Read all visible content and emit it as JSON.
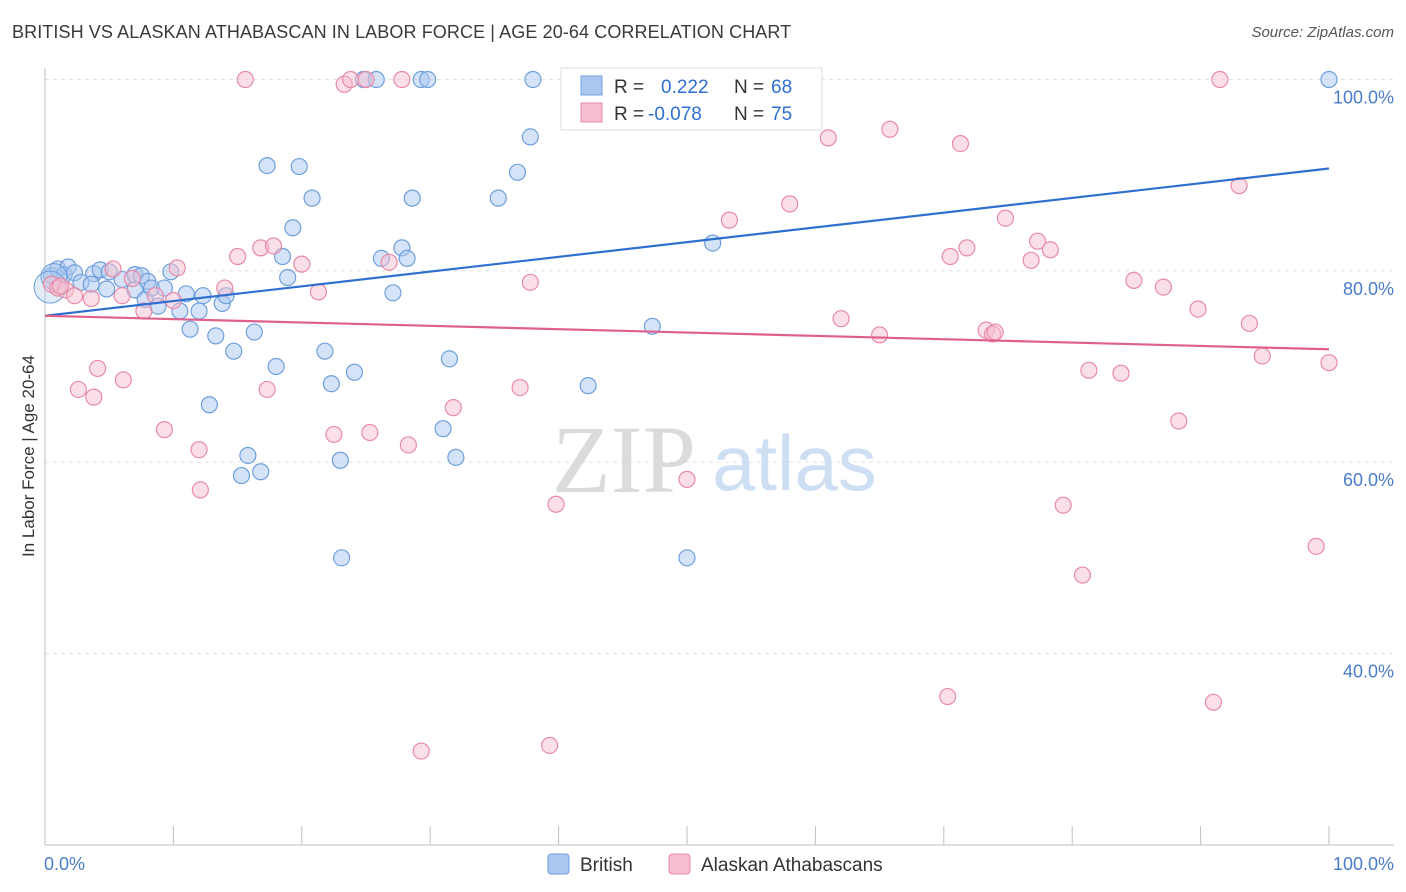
{
  "chart_data": {
    "type": "scatter",
    "title": "BRITISH VS ALASKAN ATHABASCAN IN LABOR FORCE | AGE 20-64 CORRELATION CHART",
    "source": "Source: ZipAtlas.com",
    "ylabel": "In Labor Force | Age 20-64",
    "xlabel": "",
    "xlim": [
      0,
      100
    ],
    "ylim": [
      20,
      104
    ],
    "x_tick_labels": {
      "min": "0.0%",
      "max": "100.0%"
    },
    "y_ticks": [
      {
        "value": 100,
        "label": "100.0%"
      },
      {
        "value": 80,
        "label": "80.0%"
      },
      {
        "value": 60,
        "label": "60.0%"
      },
      {
        "value": 40,
        "label": "40.0%"
      }
    ],
    "watermark": {
      "zip": "ZIP",
      "atlas": "atlas"
    },
    "legend": {
      "r_label": "R =",
      "n_label": "N =",
      "entries": [
        {
          "r": "0.222",
          "n": "68"
        },
        {
          "r": "-0.078",
          "n": "75"
        }
      ]
    },
    "colors": {
      "british_fill": "#aac8ef",
      "british_stroke": "#6f9fdc",
      "british_line": "#2f6fd0",
      "alaskan_fill": "#f6bfd0",
      "alaskan_stroke": "#e88aa8",
      "alaskan_line": "#e0608c"
    },
    "series": [
      {
        "name": "British",
        "trend": {
          "x": [
            0,
            100
          ],
          "y": [
            75.3,
            90.7
          ]
        },
        "points": [
          [
            0.5,
            79.5
          ],
          [
            1.0,
            80.2
          ],
          [
            1.5,
            79.6
          ],
          [
            1.8,
            80.4
          ],
          [
            2.3,
            79.8
          ],
          [
            2.8,
            78.8
          ],
          [
            3.8,
            79.7
          ],
          [
            3.6,
            78.6
          ],
          [
            4.3,
            80.1
          ],
          [
            5.0,
            79.9
          ],
          [
            4.8,
            78.1
          ],
          [
            6.0,
            79.1
          ],
          [
            7.0,
            79.6
          ],
          [
            7.5,
            79.5
          ],
          [
            7.0,
            78.0
          ],
          [
            8.0,
            78.9
          ],
          [
            7.8,
            77.0
          ],
          [
            8.3,
            78.2
          ],
          [
            8.8,
            76.3
          ],
          [
            9.3,
            78.2
          ],
          [
            9.8,
            79.9
          ],
          [
            10.5,
            75.8
          ],
          [
            11.0,
            77.6
          ],
          [
            11.3,
            73.9
          ],
          [
            12.0,
            75.8
          ],
          [
            12.3,
            77.4
          ],
          [
            12.8,
            66.0
          ],
          [
            13.3,
            73.2
          ],
          [
            13.8,
            76.6
          ],
          [
            14.1,
            77.4
          ],
          [
            14.7,
            71.6
          ],
          [
            15.3,
            58.6
          ],
          [
            15.8,
            60.7
          ],
          [
            16.3,
            73.6
          ],
          [
            16.8,
            59.0
          ],
          [
            17.3,
            91.0
          ],
          [
            18.0,
            70.0
          ],
          [
            18.5,
            81.5
          ],
          [
            18.9,
            79.3
          ],
          [
            19.3,
            84.5
          ],
          [
            19.8,
            90.9
          ],
          [
            20.8,
            87.6
          ],
          [
            21.8,
            71.6
          ],
          [
            22.3,
            68.2
          ],
          [
            23.0,
            60.2
          ],
          [
            23.1,
            50.0
          ],
          [
            24.1,
            69.4
          ],
          [
            24.8,
            100
          ],
          [
            25.8,
            100
          ],
          [
            26.2,
            81.3
          ],
          [
            27.1,
            77.7
          ],
          [
            27.8,
            82.4
          ],
          [
            28.2,
            81.3
          ],
          [
            28.6,
            87.6
          ],
          [
            29.3,
            100
          ],
          [
            29.8,
            100
          ],
          [
            31.0,
            63.5
          ],
          [
            31.5,
            70.8
          ],
          [
            32.0,
            60.5
          ],
          [
            35.3,
            87.6
          ],
          [
            36.8,
            90.3
          ],
          [
            37.8,
            94.0
          ],
          [
            38.0,
            100
          ],
          [
            42.3,
            68.0
          ],
          [
            47.3,
            74.2
          ],
          [
            50.0,
            50.0
          ],
          [
            52.0,
            82.9
          ],
          [
            100.0,
            100
          ]
        ]
      },
      {
        "name": "Alaskan Athabascans",
        "trend": {
          "x": [
            0,
            100
          ],
          "y": [
            75.3,
            71.8
          ]
        },
        "points": [
          [
            0.5,
            78.6
          ],
          [
            1.0,
            78.2
          ],
          [
            1.6,
            78.0
          ],
          [
            2.3,
            77.4
          ],
          [
            2.6,
            67.6
          ],
          [
            3.6,
            77.1
          ],
          [
            3.8,
            66.8
          ],
          [
            4.1,
            69.8
          ],
          [
            5.3,
            80.2
          ],
          [
            6.0,
            77.4
          ],
          [
            6.1,
            68.6
          ],
          [
            6.8,
            79.2
          ],
          [
            7.7,
            75.8
          ],
          [
            8.6,
            77.4
          ],
          [
            9.3,
            63.4
          ],
          [
            10.3,
            80.3
          ],
          [
            10.0,
            76.9
          ],
          [
            12.0,
            61.3
          ],
          [
            12.1,
            57.1
          ],
          [
            14.0,
            78.2
          ],
          [
            15.0,
            81.5
          ],
          [
            15.6,
            100
          ],
          [
            16.8,
            82.4
          ],
          [
            17.3,
            67.6
          ],
          [
            17.8,
            82.6
          ],
          [
            20.0,
            80.7
          ],
          [
            21.3,
            77.8
          ],
          [
            22.5,
            62.9
          ],
          [
            23.3,
            99.5
          ],
          [
            23.8,
            100
          ],
          [
            25.0,
            100
          ],
          [
            25.3,
            63.1
          ],
          [
            26.8,
            80.9
          ],
          [
            27.8,
            100
          ],
          [
            28.3,
            61.8
          ],
          [
            29.3,
            29.8
          ],
          [
            31.8,
            65.7
          ],
          [
            37.0,
            67.8
          ],
          [
            37.8,
            78.8
          ],
          [
            39.8,
            55.6
          ],
          [
            39.3,
            30.4
          ],
          [
            50.0,
            58.2
          ],
          [
            53.3,
            85.3
          ],
          [
            58.0,
            87.0
          ],
          [
            61.0,
            93.9
          ],
          [
            62.0,
            75.0
          ],
          [
            65.0,
            73.3
          ],
          [
            65.8,
            94.8
          ],
          [
            70.3,
            35.5
          ],
          [
            70.5,
            81.5
          ],
          [
            71.3,
            93.3
          ],
          [
            71.8,
            82.4
          ],
          [
            73.3,
            73.8
          ],
          [
            73.8,
            73.4
          ],
          [
            74.0,
            73.6
          ],
          [
            74.8,
            85.5
          ],
          [
            76.8,
            81.1
          ],
          [
            77.3,
            83.1
          ],
          [
            78.3,
            82.2
          ],
          [
            79.3,
            55.5
          ],
          [
            80.8,
            48.2
          ],
          [
            81.3,
            69.6
          ],
          [
            83.8,
            69.3
          ],
          [
            84.8,
            79.0
          ],
          [
            87.1,
            78.3
          ],
          [
            88.3,
            64.3
          ],
          [
            89.8,
            76.0
          ],
          [
            91.0,
            34.9
          ],
          [
            91.5,
            100
          ],
          [
            93.0,
            88.9
          ],
          [
            93.8,
            74.5
          ],
          [
            94.8,
            71.1
          ],
          [
            99.0,
            51.2
          ],
          [
            100.0,
            70.4
          ],
          [
            1.2,
            78.4
          ]
        ]
      }
    ],
    "bottom_legend": [
      {
        "label": "British"
      },
      {
        "label": "Alaskan Athabascans"
      }
    ]
  }
}
